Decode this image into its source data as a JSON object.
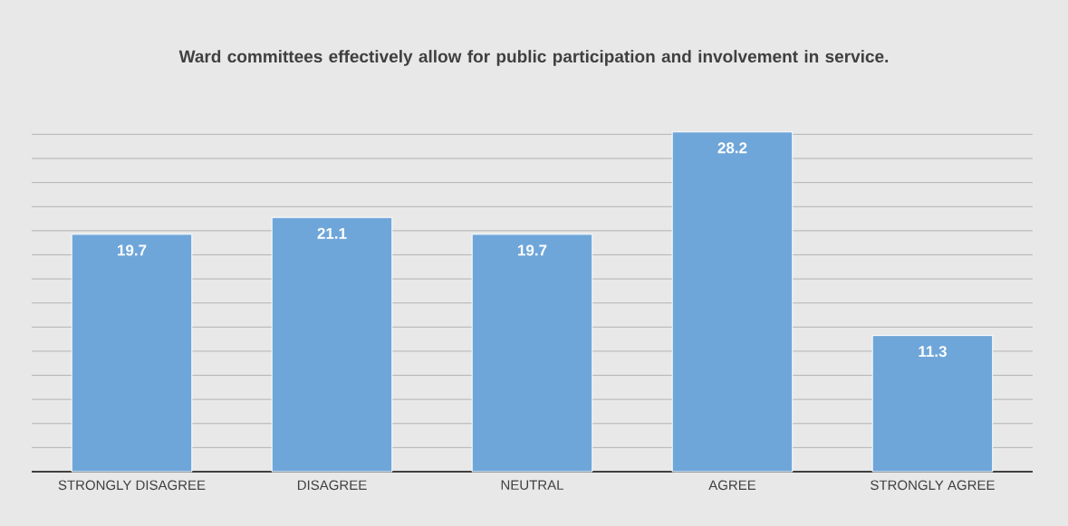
{
  "chart_data": {
    "type": "bar",
    "title": "Ward committees effectively allow for public participation and involvement in service.",
    "categories": [
      "STRONGLY DISAGREE",
      "DISAGREE",
      "NEUTRAL",
      "AGREE",
      "STRONGLY AGREE"
    ],
    "values": [
      19.7,
      21.1,
      19.7,
      28.2,
      11.3
    ],
    "color": "#6fa6d9",
    "data_labels": true,
    "grid": "y",
    "tick_labels": "x"
  }
}
